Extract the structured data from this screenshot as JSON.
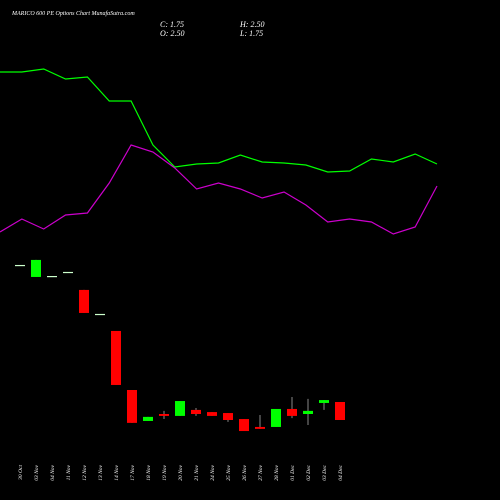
{
  "chart_data": {
    "type": "candlestick",
    "title": "MARICO 600  PE Options Chart MunafaSutra.com",
    "ohlc_labels": [
      "C: 1.75",
      "H: 2.50",
      "O: 2.50",
      "L: 1.75"
    ],
    "categories": [
      "30 Oct",
      "03 Nov",
      "04 Nov",
      "11 Nov",
      "12 Nov",
      "13 Nov",
      "14 Nov",
      "17 Nov",
      "18 Nov",
      "19 Nov",
      "20 Nov",
      "21 Nov",
      "24 Nov",
      "25 Nov",
      "26 Nov",
      "27 Nov",
      "28 Nov",
      "01 Dec",
      "02 Dec",
      "03 Dec",
      "04 Dec"
    ],
    "open": [
      8.21,
      7.71,
      7.75,
      7.92,
      7.17,
      6.17,
      5.46,
      3.0,
      1.71,
      2.0,
      1.92,
      2.17,
      2.08,
      2.04,
      1.79,
      1.46,
      1.46,
      2.21,
      2.0,
      2.46,
      2.5
    ],
    "high": [
      8.21,
      8.42,
      7.75,
      7.92,
      7.17,
      6.17,
      5.46,
      3.0,
      1.88,
      2.13,
      2.54,
      2.25,
      2.08,
      2.04,
      1.79,
      1.96,
      2.21,
      2.71,
      2.63,
      2.58,
      2.5
    ],
    "low": [
      8.21,
      7.71,
      7.75,
      7.92,
      6.21,
      6.17,
      3.21,
      1.63,
      1.71,
      1.79,
      1.92,
      1.92,
      1.92,
      1.67,
      1.29,
      1.38,
      1.46,
      1.83,
      1.54,
      2.17,
      1.75
    ],
    "close": [
      8.21,
      8.42,
      7.75,
      7.92,
      6.21,
      6.17,
      3.21,
      1.63,
      1.88,
      1.92,
      2.54,
      2.0,
      1.92,
      1.75,
      1.29,
      1.38,
      2.21,
      1.92,
      2.13,
      2.58,
      1.75
    ],
    "up_color": "#00ff00",
    "down_color": "#ff0000",
    "ylim": [
      0,
      10
    ],
    "series": [
      {
        "color": "#00ff00",
        "axis": "y2",
        "values": [
          89,
          89,
          90.5,
          85.5,
          86.5,
          74.5,
          74.5,
          52.5,
          41.5,
          43,
          43.5,
          47.5,
          44,
          43.5,
          42.5,
          39,
          39.5,
          45.5,
          44,
          48,
          43
        ]
      },
      {
        "color": "#cc00cc",
        "axis": "y2",
        "values": [
          9,
          15.5,
          10.5,
          17.5,
          18.5,
          33.5,
          52.5,
          49,
          41,
          30.5,
          33.5,
          30.5,
          26,
          29,
          22.5,
          14,
          15.5,
          14,
          8,
          11.5,
          32
        ]
      }
    ],
    "y2lim": [
      0,
      100
    ]
  }
}
